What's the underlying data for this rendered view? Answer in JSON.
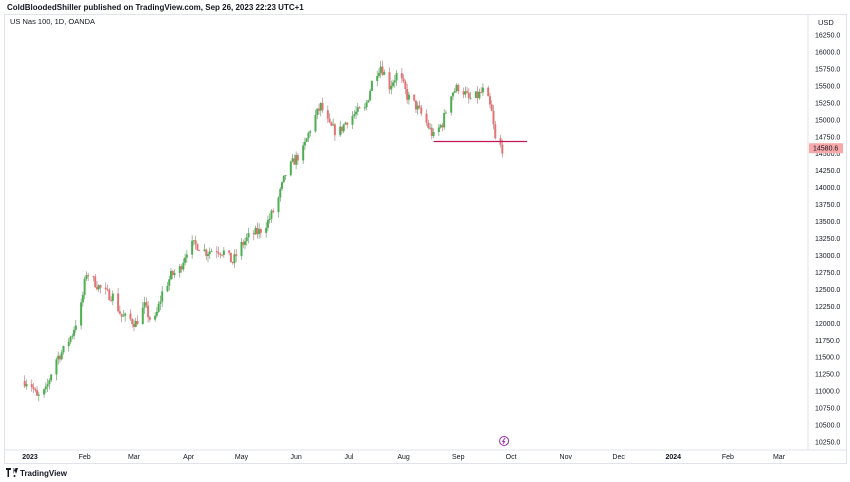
{
  "header": {
    "publisher_line": "ColdBloodedShiller published on TradingView.com, Sep 26, 2023 22:23 UTC+1"
  },
  "footer": {
    "brand": "TradingView",
    "logo_icon": "tradingview-logo-icon"
  },
  "colors": {
    "up": "#26a69a",
    "down": "#ef5350",
    "up_body": "#4caf50",
    "down_body": "#e57373",
    "level_line": "#c2185b",
    "price_badge": "#f7a8a8",
    "grid": "#f0f3fa",
    "event_marker": "#9c27b0"
  },
  "chart_data": {
    "type": "candlestick",
    "title": "US Nas 100, 1D, OANDA",
    "currency_label": "USD",
    "y_ticks": [
      "16250.0",
      "16000.0",
      "15750.0",
      "15500.0",
      "15250.0",
      "15000.0",
      "14750.0",
      "14500.0",
      "14250.0",
      "14000.0",
      "13750.0",
      "13500.0",
      "13250.0",
      "13000.0",
      "12750.0",
      "12500.0",
      "12250.0",
      "12000.0",
      "11750.0",
      "11500.0",
      "11250.0",
      "11000.0",
      "10750.0",
      "10500.0",
      "10250.0"
    ],
    "ylim": [
      10150,
      16400
    ],
    "x_ticks": [
      "2023",
      "Feb",
      "Mar",
      "Apr",
      "May",
      "Jun",
      "Jul",
      "Aug",
      "Sep",
      "Oct",
      "Nov",
      "Dec",
      "2024",
      "Feb",
      "Mar"
    ],
    "x_tick_bold": [
      "2023",
      "2024"
    ],
    "last_price_label": "14580.6",
    "last_price": 14580.6,
    "horizontal_level": {
      "value": 14680,
      "from_date": "2023-08-18",
      "to_date": "2023-10-10"
    },
    "event_marker": {
      "date": "2023-09-27",
      "icon": "economic-event-icon"
    },
    "grid": false,
    "close_series": [
      {
        "date": "2023-01-01",
        "close": 11150
      },
      {
        "date": "2023-01-05",
        "close": 10900
      },
      {
        "date": "2023-01-10",
        "close": 11000
      },
      {
        "date": "2023-01-15",
        "close": 11450
      },
      {
        "date": "2023-01-20",
        "close": 11600
      },
      {
        "date": "2023-01-25",
        "close": 11850
      },
      {
        "date": "2023-01-30",
        "close": 12250
      },
      {
        "date": "2023-02-02",
        "close": 12750
      },
      {
        "date": "2023-02-07",
        "close": 12600
      },
      {
        "date": "2023-02-12",
        "close": 12450
      },
      {
        "date": "2023-02-17",
        "close": 12400
      },
      {
        "date": "2023-02-22",
        "close": 12100
      },
      {
        "date": "2023-02-27",
        "close": 12050
      },
      {
        "date": "2023-03-02",
        "close": 12000
      },
      {
        "date": "2023-03-07",
        "close": 12250
      },
      {
        "date": "2023-03-12",
        "close": 11950
      },
      {
        "date": "2023-03-17",
        "close": 12450
      },
      {
        "date": "2023-03-22",
        "close": 12700
      },
      {
        "date": "2023-03-27",
        "close": 12800
      },
      {
        "date": "2023-04-01",
        "close": 13150
      },
      {
        "date": "2023-04-06",
        "close": 13150
      },
      {
        "date": "2023-04-11",
        "close": 13050
      },
      {
        "date": "2023-04-16",
        "close": 13100
      },
      {
        "date": "2023-04-21",
        "close": 13050
      },
      {
        "date": "2023-04-26",
        "close": 12900
      },
      {
        "date": "2023-05-01",
        "close": 13150
      },
      {
        "date": "2023-05-06",
        "close": 13300
      },
      {
        "date": "2023-05-11",
        "close": 13350
      },
      {
        "date": "2023-05-16",
        "close": 13500
      },
      {
        "date": "2023-05-21",
        "close": 13750
      },
      {
        "date": "2023-05-26",
        "close": 14200
      },
      {
        "date": "2023-05-31",
        "close": 14400
      },
      {
        "date": "2023-06-05",
        "close": 14550
      },
      {
        "date": "2023-06-10",
        "close": 14950
      },
      {
        "date": "2023-06-15",
        "close": 15200
      },
      {
        "date": "2023-06-20",
        "close": 14900
      },
      {
        "date": "2023-06-25",
        "close": 14800
      },
      {
        "date": "2023-06-30",
        "close": 15000
      },
      {
        "date": "2023-07-05",
        "close": 15100
      },
      {
        "date": "2023-07-10",
        "close": 15150
      },
      {
        "date": "2023-07-15",
        "close": 15650
      },
      {
        "date": "2023-07-19",
        "close": 15800
      },
      {
        "date": "2023-07-24",
        "close": 15500
      },
      {
        "date": "2023-07-29",
        "close": 15700
      },
      {
        "date": "2023-08-03",
        "close": 15350
      },
      {
        "date": "2023-08-08",
        "close": 15200
      },
      {
        "date": "2023-08-13",
        "close": 15000
      },
      {
        "date": "2023-08-18",
        "close": 14750
      },
      {
        "date": "2023-08-23",
        "close": 14950
      },
      {
        "date": "2023-08-28",
        "close": 15400
      },
      {
        "date": "2023-09-02",
        "close": 15500
      },
      {
        "date": "2023-09-07",
        "close": 15300
      },
      {
        "date": "2023-09-12",
        "close": 15350
      },
      {
        "date": "2023-09-16",
        "close": 15450
      },
      {
        "date": "2023-09-20",
        "close": 15100
      },
      {
        "date": "2023-09-22",
        "close": 14700
      },
      {
        "date": "2023-09-26",
        "close": 14580
      }
    ]
  }
}
